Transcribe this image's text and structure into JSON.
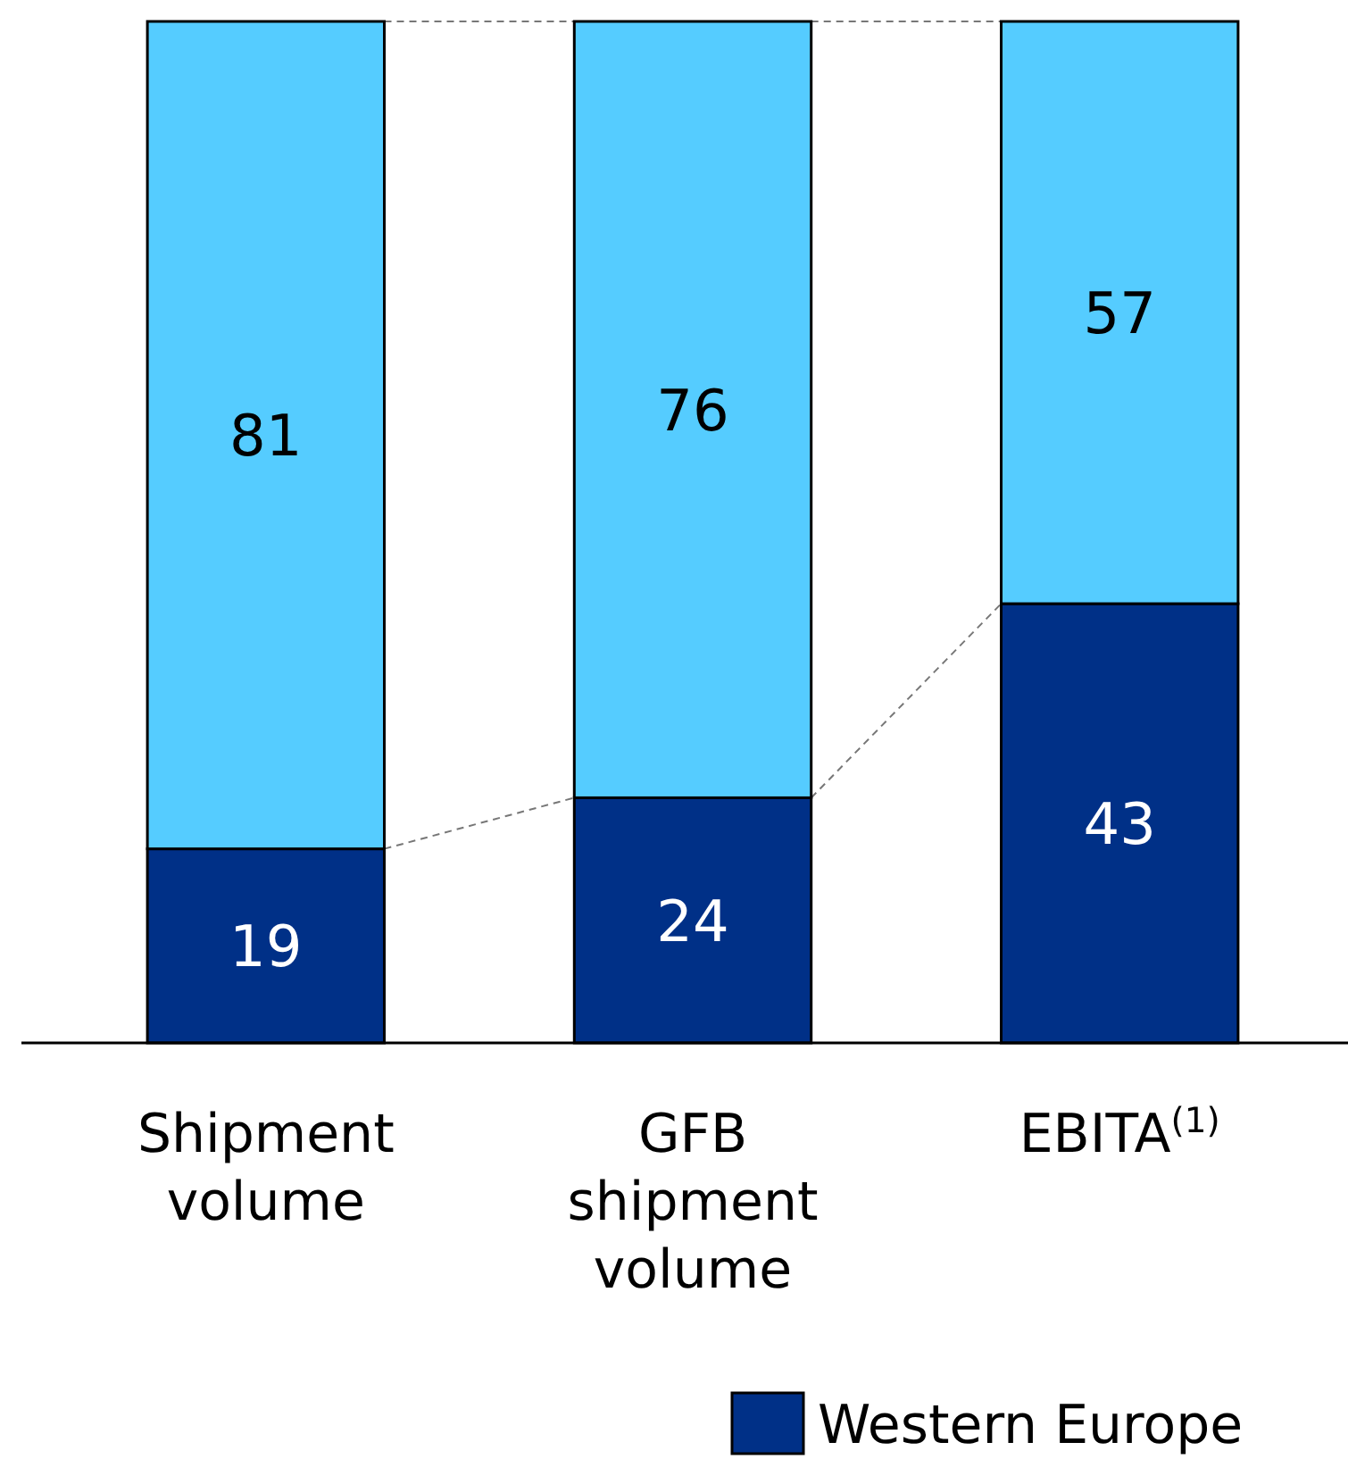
{
  "chart_data": {
    "type": "bar",
    "stacked": true,
    "data_labels": true,
    "legend": "bottom right",
    "categories": [
      "Shipment volume",
      "GFB shipment volume",
      "EBITA$^{(1)}$"
    ],
    "series": [
      {
        "name": "Western Europe",
        "color": "#003087",
        "values": [
          19,
          24,
          43
        ]
      },
      {
        "color": "#55ccff",
        "values": [
          81,
          76,
          57
        ]
      }
    ]
  }
}
